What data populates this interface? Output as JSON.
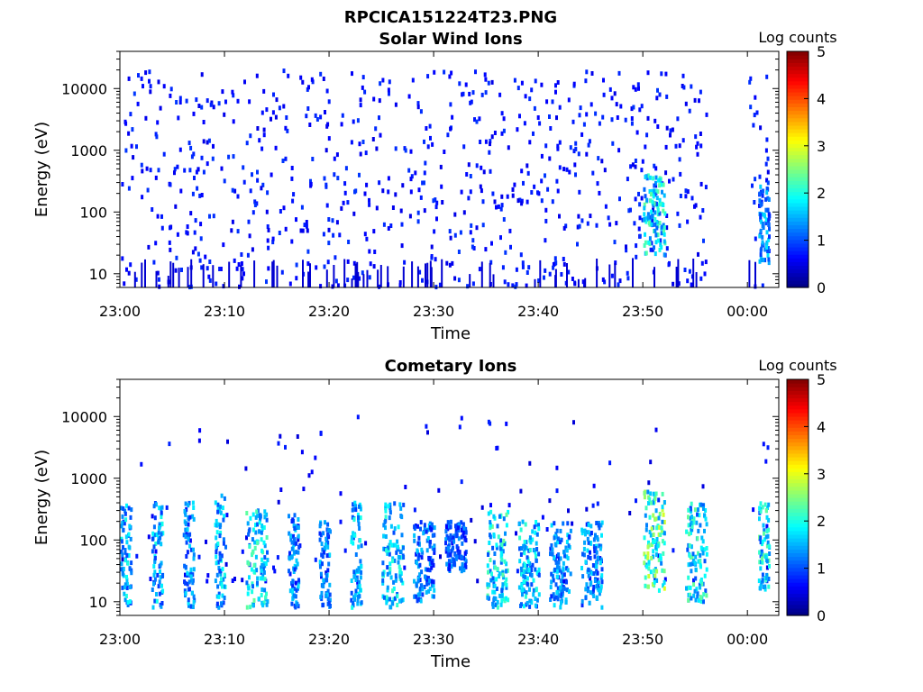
{
  "figure": {
    "title": "RPCICA151224T23.PNG"
  },
  "colormap": [
    "#00007f",
    "#0000ff",
    "#007fff",
    "#00ffff",
    "#7fff7f",
    "#ffff00",
    "#ff7f00",
    "#ff0000",
    "#7f0000"
  ],
  "chart_data": [
    {
      "type": "heatmap",
      "title": "Solar Wind Ions",
      "xlabel": "Time",
      "ylabel": "Energy (eV)",
      "y_scale": "log",
      "xlim": [
        "23:00",
        "00:03"
      ],
      "ylim": [
        6,
        40000
      ],
      "x_ticks": [
        "23:00",
        "23:10",
        "23:20",
        "23:30",
        "23:40",
        "23:50",
        "00:00"
      ],
      "y_ticks": [
        "10",
        "100",
        "1000",
        "10000"
      ],
      "colorbar": {
        "label": "Log counts",
        "range": [
          0,
          5
        ],
        "ticks": [
          "0",
          "1",
          "2",
          "3",
          "4",
          "5"
        ]
      },
      "data_gap": [
        "23:56",
        "00:00"
      ],
      "features": [
        {
          "time": "23:50-23:52",
          "energy_eV": "20-400",
          "log_counts": 2.0
        },
        {
          "time": "00:01-00:02",
          "energy_eV": "15-300",
          "log_counts": 1.5
        }
      ],
      "background": {
        "time": "23:00-00:02",
        "energy_eV": "6-20000",
        "log_counts": 0.5,
        "description": "sparse single counts"
      }
    },
    {
      "type": "heatmap",
      "title": "Cometary Ions",
      "xlabel": "Time",
      "ylabel": "Energy (eV)",
      "y_scale": "log",
      "xlim": [
        "23:00",
        "00:03"
      ],
      "ylim": [
        6,
        40000
      ],
      "x_ticks": [
        "23:00",
        "23:10",
        "23:20",
        "23:30",
        "23:40",
        "23:50",
        "00:00"
      ],
      "y_ticks": [
        "10",
        "100",
        "1000",
        "10000"
      ],
      "colorbar": {
        "label": "Log counts",
        "range": [
          0,
          5
        ],
        "ticks": [
          "0",
          "1",
          "2",
          "3",
          "4",
          "5"
        ]
      },
      "data_gap": [
        "23:56",
        "00:00"
      ],
      "features": [
        {
          "time": "23:00-23:01",
          "energy_eV": "8-400",
          "log_counts": 1.7
        },
        {
          "time": "23:03-23:04",
          "energy_eV": "8-400",
          "log_counts": 1.7
        },
        {
          "time": "23:06-23:07",
          "energy_eV": "8-400",
          "log_counts": 1.5
        },
        {
          "time": "23:09-23:10",
          "energy_eV": "8-600",
          "log_counts": 1.7
        },
        {
          "time": "23:12-23:14",
          "energy_eV": "8-300",
          "log_counts": 2.0
        },
        {
          "time": "23:16-23:17",
          "energy_eV": "8-300",
          "log_counts": 1.5
        },
        {
          "time": "23:19-23:20",
          "energy_eV": "8-200",
          "log_counts": 1.5
        },
        {
          "time": "23:22-23:23",
          "energy_eV": "8-400",
          "log_counts": 1.7
        },
        {
          "time": "23:25-23:27",
          "energy_eV": "8-400",
          "log_counts": 1.8
        },
        {
          "time": "23:28-23:30",
          "energy_eV": "10-200",
          "log_counts": 1.4
        },
        {
          "time": "23:31-23:33",
          "energy_eV": "30-200",
          "log_counts": 1.2
        },
        {
          "time": "23:35-23:37",
          "energy_eV": "8-300",
          "log_counts": 2.0
        },
        {
          "time": "23:38-23:40",
          "energy_eV": "8-200",
          "log_counts": 1.8
        },
        {
          "time": "23:41-23:43",
          "energy_eV": "8-200",
          "log_counts": 1.5
        },
        {
          "time": "23:44-23:46",
          "energy_eV": "8-200",
          "log_counts": 1.5
        },
        {
          "time": "23:50-23:52",
          "energy_eV": "15-600",
          "log_counts": 2.5
        },
        {
          "time": "23:54-23:56",
          "energy_eV": "10-400",
          "log_counts": 2.0
        },
        {
          "time": "00:01-00:02",
          "energy_eV": "15-400",
          "log_counts": 2.0
        }
      ],
      "background": {
        "time": "23:00-00:02",
        "energy_eV": "20-10000",
        "log_counts": 0.4,
        "description": "sparse single counts"
      }
    }
  ]
}
